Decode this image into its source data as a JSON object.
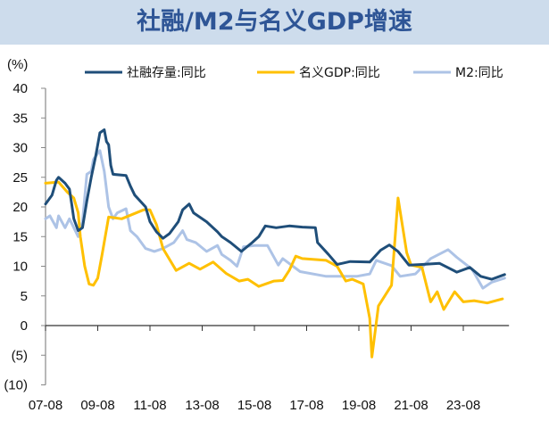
{
  "chart_data": {
    "type": "line",
    "title": "社融/M2与名义GDP增速",
    "ylabel": "(%)",
    "xlabel": "",
    "ylim": [
      -10,
      40
    ],
    "yticks": [
      "40",
      "35",
      "30",
      "25",
      "20",
      "15",
      "10",
      "5",
      "0",
      "(5)",
      "(10)"
    ],
    "ytick_values": [
      40,
      35,
      30,
      25,
      20,
      15,
      10,
      5,
      0,
      -5,
      -10
    ],
    "xticks": [
      "07-08",
      "09-08",
      "11-08",
      "13-08",
      "15-08",
      "17-08",
      "19-08",
      "21-08",
      "23-08"
    ],
    "xtick_dates": [
      "2007-08",
      "2009-08",
      "2011-08",
      "2013-08",
      "2015-08",
      "2017-08",
      "2019-08",
      "2021-08",
      "2023-08"
    ],
    "xlim": [
      "2007-08",
      "2025-05"
    ],
    "grid": false,
    "legend_position": "top",
    "series": [
      {
        "name": "社融存量:同比",
        "color": "#1f4e79",
        "points": [
          [
            "2007-08",
            20.5
          ],
          [
            "2007-11",
            22
          ],
          [
            "2008-01",
            24.5
          ],
          [
            "2008-02",
            25
          ],
          [
            "2008-05",
            24
          ],
          [
            "2008-07",
            23
          ],
          [
            "2008-08",
            20.5
          ],
          [
            "2008-09",
            18
          ],
          [
            "2008-11",
            16
          ],
          [
            "2009-01",
            16.5
          ],
          [
            "2009-03",
            21
          ],
          [
            "2009-05",
            25
          ],
          [
            "2009-07",
            28.5
          ],
          [
            "2009-09",
            32.5
          ],
          [
            "2009-11",
            33
          ],
          [
            "2009-12",
            31
          ],
          [
            "2010-01",
            30.5
          ],
          [
            "2010-02",
            27
          ],
          [
            "2010-03",
            25.5
          ],
          [
            "2010-09",
            25.3
          ],
          [
            "2010-11",
            23.5
          ],
          [
            "2011-01",
            22
          ],
          [
            "2011-06",
            20
          ],
          [
            "2011-08",
            17.5
          ],
          [
            "2011-11",
            15.8
          ],
          [
            "2012-02",
            14.7
          ],
          [
            "2012-05",
            15.5
          ],
          [
            "2012-09",
            17.5
          ],
          [
            "2012-11",
            19.5
          ],
          [
            "2013-02",
            20.5
          ],
          [
            "2013-04",
            19
          ],
          [
            "2013-10",
            17.5
          ],
          [
            "2014-03",
            15.8
          ],
          [
            "2014-05",
            15
          ],
          [
            "2014-09",
            14
          ],
          [
            "2015-02",
            12.5
          ],
          [
            "2015-07",
            14
          ],
          [
            "2015-10",
            15
          ],
          [
            "2016-01",
            16.8
          ],
          [
            "2016-06",
            16.5
          ],
          [
            "2016-12",
            16.8
          ],
          [
            "2017-06",
            16.6
          ],
          [
            "2017-12",
            16.5
          ],
          [
            "2018-01",
            14
          ],
          [
            "2018-06",
            12
          ],
          [
            "2018-10",
            10.3
          ],
          [
            "2019-04",
            10.8
          ],
          [
            "2020-01",
            10.7
          ],
          [
            "2020-06",
            12.7
          ],
          [
            "2020-10",
            13.6
          ],
          [
            "2021-02",
            12.5
          ],
          [
            "2021-07",
            10.2
          ],
          [
            "2022-01",
            10.3
          ],
          [
            "2022-09",
            10.5
          ],
          [
            "2023-05",
            9
          ],
          [
            "2023-11",
            9.8
          ],
          [
            "2024-04",
            8.3
          ],
          [
            "2024-09",
            7.8
          ],
          [
            "2025-03",
            8.6
          ]
        ]
      },
      {
        "name": "名义GDP:同比",
        "color": "#ffc000",
        "points": [
          [
            "2007-08",
            24
          ],
          [
            "2008-02",
            24.2
          ],
          [
            "2008-06",
            22.5
          ],
          [
            "2008-09",
            21.5
          ],
          [
            "2008-11",
            19
          ],
          [
            "2008-12",
            15
          ],
          [
            "2009-02",
            10
          ],
          [
            "2009-04",
            7
          ],
          [
            "2009-06",
            6.8
          ],
          [
            "2009-08",
            8
          ],
          [
            "2009-10",
            12
          ],
          [
            "2010-01",
            18.3
          ],
          [
            "2010-07",
            18
          ],
          [
            "2011-05",
            19.5
          ],
          [
            "2011-08",
            19.5
          ],
          [
            "2011-11",
            17
          ],
          [
            "2012-02",
            13
          ],
          [
            "2012-08",
            9.3
          ],
          [
            "2013-02",
            10.5
          ],
          [
            "2013-07",
            9.5
          ],
          [
            "2014-01",
            10.7
          ],
          [
            "2014-07",
            8.8
          ],
          [
            "2015-01",
            7.5
          ],
          [
            "2015-05",
            7.8
          ],
          [
            "2015-10",
            6.6
          ],
          [
            "2016-05",
            7.5
          ],
          [
            "2016-09",
            7.6
          ],
          [
            "2016-12",
            9.3
          ],
          [
            "2017-03",
            11.7
          ],
          [
            "2017-06",
            11.3
          ],
          [
            "2018-05",
            11
          ],
          [
            "2018-10",
            10
          ],
          [
            "2019-02",
            7.5
          ],
          [
            "2019-05",
            7.8
          ],
          [
            "2019-10",
            7
          ],
          [
            "2020-01",
            1.2
          ],
          [
            "2020-02",
            -5.3
          ],
          [
            "2020-05",
            3.3
          ],
          [
            "2020-11",
            6.8
          ],
          [
            "2021-02",
            21.5
          ],
          [
            "2021-06",
            12.3
          ],
          [
            "2021-08",
            10.2
          ],
          [
            "2022-01",
            9.8
          ],
          [
            "2022-05",
            4
          ],
          [
            "2022-08",
            5.7
          ],
          [
            "2022-11",
            2.7
          ],
          [
            "2023-04",
            5.7
          ],
          [
            "2023-08",
            4
          ],
          [
            "2024-01",
            4.2
          ],
          [
            "2024-07",
            3.8
          ],
          [
            "2025-02",
            4.5
          ]
        ]
      },
      {
        "name": "M2:同比",
        "color": "#adc3e6",
        "points": [
          [
            "2007-08",
            18
          ],
          [
            "2007-10",
            18.5
          ],
          [
            "2008-01",
            16.5
          ],
          [
            "2008-02",
            18.5
          ],
          [
            "2008-05",
            16.5
          ],
          [
            "2008-07",
            18
          ],
          [
            "2008-11",
            15
          ],
          [
            "2009-01",
            17.5
          ],
          [
            "2009-03",
            25.5
          ],
          [
            "2009-05",
            26
          ],
          [
            "2009-06",
            28
          ],
          [
            "2009-09",
            29.5
          ],
          [
            "2009-11",
            26
          ],
          [
            "2010-01",
            20
          ],
          [
            "2010-03",
            18
          ],
          [
            "2010-05",
            19
          ],
          [
            "2010-09",
            19.7
          ],
          [
            "2010-11",
            16
          ],
          [
            "2011-02",
            15
          ],
          [
            "2011-06",
            13
          ],
          [
            "2011-10",
            12.5
          ],
          [
            "2012-02",
            13
          ],
          [
            "2012-07",
            14
          ],
          [
            "2012-11",
            16
          ],
          [
            "2013-01",
            14.5
          ],
          [
            "2013-05",
            14
          ],
          [
            "2013-10",
            12.5
          ],
          [
            "2014-03",
            13.5
          ],
          [
            "2014-05",
            12
          ],
          [
            "2014-09",
            11
          ],
          [
            "2014-12",
            10
          ],
          [
            "2015-03",
            13.3
          ],
          [
            "2015-08",
            13.5
          ],
          [
            "2016-02",
            13.5
          ],
          [
            "2016-07",
            10.2
          ],
          [
            "2016-09",
            11.3
          ],
          [
            "2017-05",
            9.1
          ],
          [
            "2018-05",
            8.3
          ],
          [
            "2019-07",
            8.3
          ],
          [
            "2020-01",
            8.7
          ],
          [
            "2020-04",
            11
          ],
          [
            "2020-11",
            10.1
          ],
          [
            "2021-03",
            8.3
          ],
          [
            "2021-10",
            8.7
          ],
          [
            "2022-05",
            11.3
          ],
          [
            "2023-01",
            12.8
          ],
          [
            "2023-05",
            11.5
          ],
          [
            "2023-12",
            9.5
          ],
          [
            "2024-05",
            6.3
          ],
          [
            "2024-09",
            7.3
          ],
          [
            "2025-03",
            8
          ]
        ]
      }
    ]
  }
}
